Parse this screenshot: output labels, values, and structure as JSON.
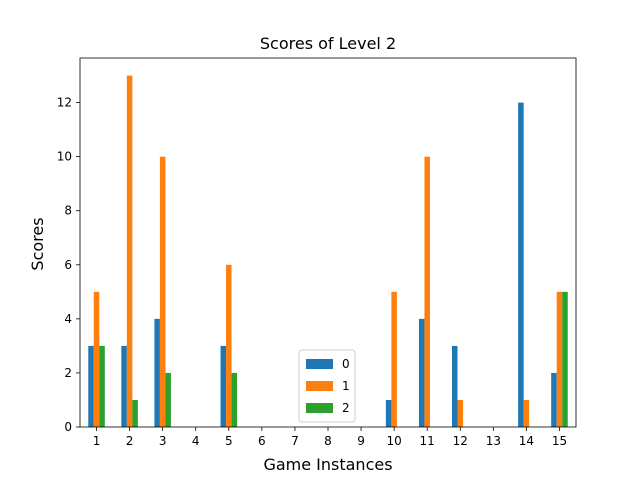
{
  "chart_data": {
    "type": "bar",
    "title": "Scores of Level 2",
    "xlabel": "Game Instances",
    "ylabel": "Scores",
    "categories": [
      "1",
      "2",
      "3",
      "4",
      "5",
      "6",
      "7",
      "8",
      "9",
      "10",
      "11",
      "12",
      "13",
      "14",
      "15"
    ],
    "series": [
      {
        "name": "0",
        "color": "#1f77b4",
        "values": [
          3,
          3,
          4,
          0,
          3,
          0,
          0,
          0,
          0,
          1,
          4,
          3,
          0,
          12,
          2
        ]
      },
      {
        "name": "1",
        "color": "#ff7f0e",
        "values": [
          5,
          13,
          10,
          0,
          6,
          0,
          0,
          0,
          0,
          5,
          10,
          1,
          0,
          1,
          5
        ]
      },
      {
        "name": "2",
        "color": "#2ca02c",
        "values": [
          3,
          1,
          2,
          0,
          2,
          0,
          0,
          0,
          0,
          0,
          0,
          0,
          0,
          0,
          5
        ]
      }
    ],
    "ylim": [
      0,
      13.65
    ],
    "yticks": [
      0,
      2,
      4,
      6,
      8,
      10,
      12
    ],
    "grid": false,
    "legend_position": "lower-center"
  }
}
